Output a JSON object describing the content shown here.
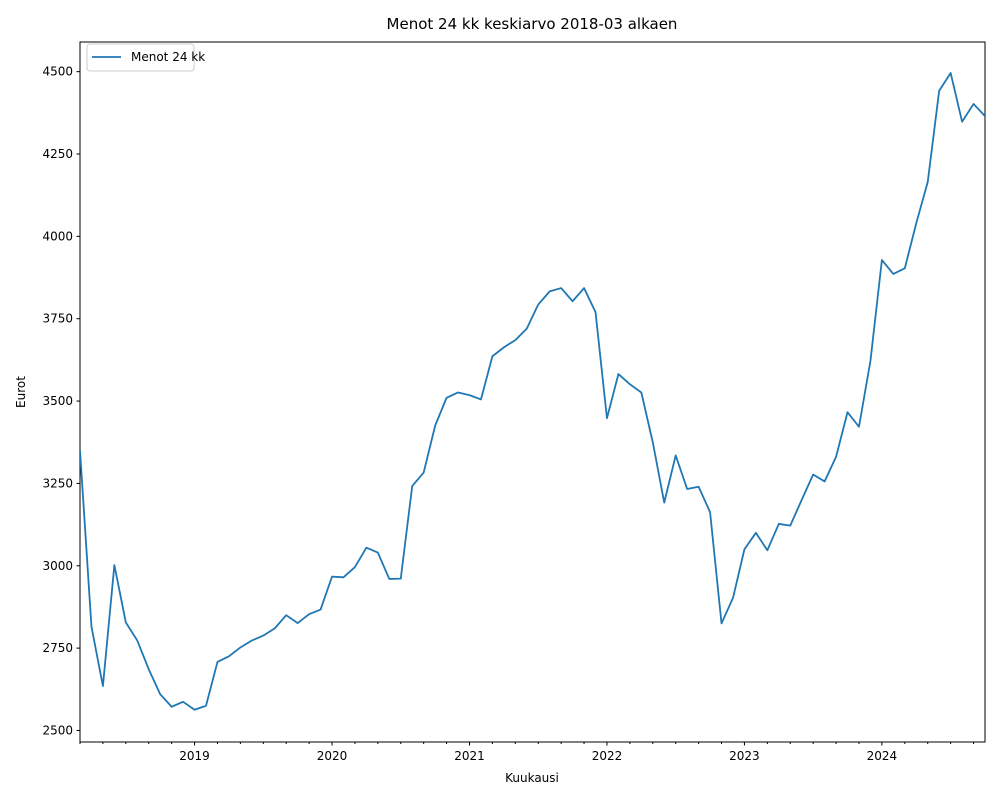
{
  "chart_data": {
    "type": "line",
    "title": "Menot 24 kk keskiarvo 2018-03 alkaen",
    "xlabel": "Kuukausi",
    "ylabel": "Eurot",
    "ylim": [
      2465,
      4590
    ],
    "xlim": [
      "2018-03",
      "2024-10"
    ],
    "grid": false,
    "legend": {
      "placement": "top-left",
      "entries": [
        "Menot 24 kk"
      ]
    },
    "x_tick_labels": [
      "2019",
      "2020",
      "2021",
      "2022",
      "2023",
      "2024"
    ],
    "y_tick_labels": [
      "2500",
      "2750",
      "3000",
      "3250",
      "3500",
      "3750",
      "4000",
      "4250",
      "4500"
    ],
    "series": [
      {
        "name": "Menot 24 kk",
        "color": "#1f77b4",
        "x": [
          "2018-03",
          "2018-04",
          "2018-05",
          "2018-06",
          "2018-07",
          "2018-08",
          "2018-09",
          "2018-10",
          "2018-11",
          "2018-12",
          "2019-01",
          "2019-02",
          "2019-03",
          "2019-04",
          "2019-05",
          "2019-06",
          "2019-07",
          "2019-08",
          "2019-09",
          "2019-10",
          "2019-11",
          "2019-12",
          "2020-01",
          "2020-02",
          "2020-03",
          "2020-04",
          "2020-05",
          "2020-06",
          "2020-07",
          "2020-08",
          "2020-09",
          "2020-10",
          "2020-11",
          "2020-12",
          "2021-01",
          "2021-02",
          "2021-03",
          "2021-04",
          "2021-05",
          "2021-06",
          "2021-07",
          "2021-08",
          "2021-09",
          "2021-10",
          "2021-11",
          "2021-12",
          "2022-01",
          "2022-02",
          "2022-03",
          "2022-04",
          "2022-05",
          "2022-06",
          "2022-07",
          "2022-08",
          "2022-09",
          "2022-10",
          "2022-11",
          "2022-12",
          "2023-01",
          "2023-02",
          "2023-03",
          "2023-04",
          "2023-05",
          "2023-06",
          "2023-07",
          "2023-08",
          "2023-09",
          "2023-10",
          "2023-11",
          "2023-12",
          "2024-01",
          "2024-02",
          "2024-03",
          "2024-04",
          "2024-05",
          "2024-06",
          "2024-07",
          "2024-08",
          "2024-09",
          "2024-10"
        ],
        "values": [
          3350,
          2815,
          2635,
          3002,
          2828,
          2773,
          2686,
          2610,
          2572,
          2587,
          2563,
          2575,
          2708,
          2725,
          2752,
          2773,
          2788,
          2810,
          2850,
          2826,
          2853,
          2867,
          2967,
          2965,
          2996,
          3055,
          3040,
          2960,
          2961,
          3242,
          3283,
          3425,
          3510,
          3526,
          3518,
          3505,
          3636,
          3663,
          3685,
          3720,
          3793,
          3833,
          3843,
          3803,
          3843,
          3770,
          3448,
          3582,
          3551,
          3526,
          3375,
          3192,
          3335,
          3233,
          3240,
          3163,
          2825,
          2902,
          3050,
          3100,
          3047,
          3127,
          3122,
          3200,
          3277,
          3256,
          3331,
          3466,
          3422,
          3622,
          3928,
          3886,
          3903,
          4040,
          4165,
          4442,
          4496,
          4348,
          4402,
          4365
        ]
      }
    ]
  }
}
